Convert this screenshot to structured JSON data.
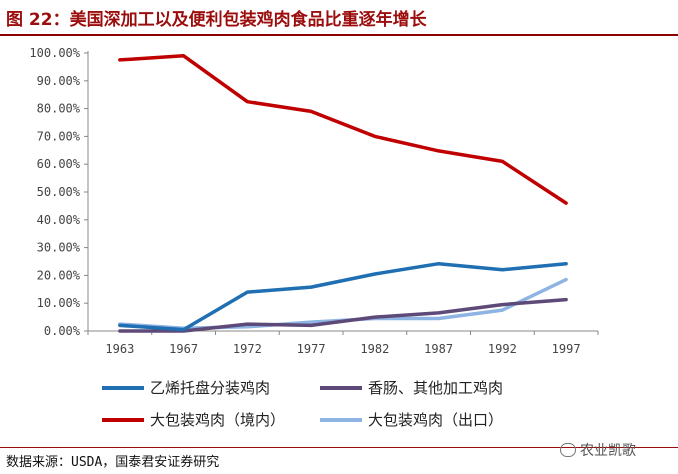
{
  "title": "图 22：美国深加工以及便利包装鸡肉食品比重逐年增长",
  "source": "数据来源：USDA，国泰君安证券研究",
  "watermark": "农业凯歌",
  "chart_data": {
    "type": "line",
    "categories": [
      "1963",
      "1967",
      "1972",
      "1977",
      "1982",
      "1987",
      "1992",
      "1997"
    ],
    "y_ticks": [
      "0.00%",
      "10.00%",
      "20.00%",
      "30.00%",
      "40.00%",
      "50.00%",
      "60.00%",
      "70.00%",
      "80.00%",
      "90.00%",
      "100.00%"
    ],
    "ylim": [
      0,
      100
    ],
    "grid": false,
    "legend_position": "bottom",
    "series": [
      {
        "name": "乙烯托盘分装鸡肉",
        "color": "#1f6fb2",
        "values": [
          2,
          0.5,
          14,
          15.8,
          20.5,
          24.2,
          22,
          24.2
        ]
      },
      {
        "name": "香肠、其他加工鸡肉",
        "color": "#5e4a78",
        "values": [
          0,
          0,
          2.5,
          2,
          5,
          6.5,
          9.5,
          11.3
        ]
      },
      {
        "name": "大包装鸡肉（境内）",
        "color": "#c00000",
        "values": [
          97.5,
          99,
          82.5,
          79,
          70,
          64.8,
          61,
          46
        ]
      },
      {
        "name": "大包装鸡肉（出口）",
        "color": "#8eb4e3",
        "values": [
          2.5,
          1,
          1.5,
          3.2,
          4.5,
          4.5,
          7.5,
          18.5
        ]
      }
    ]
  }
}
